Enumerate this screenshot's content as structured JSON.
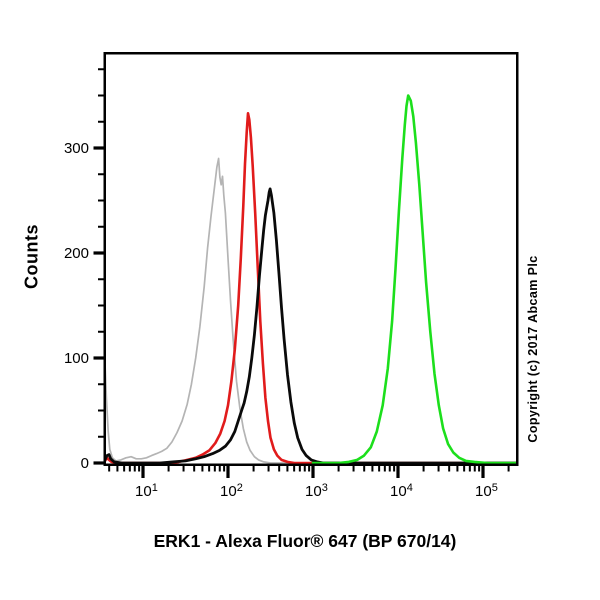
{
  "figure": {
    "copyright": "Copyright (c) 2017 Abcam Plc",
    "background": "#ffffff"
  },
  "chart_data": {
    "type": "line",
    "variant": "flow-cytometry-histogram-overlay",
    "title": "",
    "xlabel": "ERK1 - Alexa Fluor® 647 (BP 670/14)",
    "ylabel": "Counts",
    "x_scale": "log10",
    "x_unit": "log10(fluorescence intensity)",
    "xlim_log10": [
      0.553,
      5.4
    ],
    "ylim": [
      0,
      390
    ],
    "grid": false,
    "legend": false,
    "frame_color": "#000000",
    "y_major_ticks": [
      {
        "label": "0",
        "value": 0
      },
      {
        "label": "100",
        "value": 100
      },
      {
        "label": "200",
        "value": 200
      },
      {
        "label": "300",
        "value": 300
      }
    ],
    "y_minor_tick_step": 25,
    "x_major_ticks": [
      {
        "base": "10",
        "exp": "1",
        "log10": 1
      },
      {
        "base": "10",
        "exp": "2",
        "log10": 2
      },
      {
        "base": "10",
        "exp": "3",
        "log10": 3
      },
      {
        "base": "10",
        "exp": "4",
        "log10": 4
      },
      {
        "base": "10",
        "exp": "5",
        "log10": 5
      }
    ],
    "x_minor_ticks_per_decade": [
      2,
      3,
      4,
      5,
      6,
      7,
      8,
      9
    ],
    "series": [
      {
        "name": "gray-curve",
        "color": "#b4b4b4",
        "stroke_width": 1.7,
        "peak_x_approx": 78,
        "peak_count": 290,
        "points": [
          [
            0.553,
            95
          ],
          [
            0.57,
            62
          ],
          [
            0.59,
            30
          ],
          [
            0.61,
            13
          ],
          [
            0.64,
            5
          ],
          [
            0.68,
            2
          ],
          [
            0.74,
            3
          ],
          [
            0.8,
            5
          ],
          [
            0.86,
            6
          ],
          [
            0.92,
            4
          ],
          [
            0.98,
            4
          ],
          [
            1.04,
            5
          ],
          [
            1.1,
            7
          ],
          [
            1.16,
            9
          ],
          [
            1.22,
            11
          ],
          [
            1.28,
            14
          ],
          [
            1.34,
            20
          ],
          [
            1.4,
            29
          ],
          [
            1.46,
            40
          ],
          [
            1.52,
            56
          ],
          [
            1.57,
            75
          ],
          [
            1.62,
            100
          ],
          [
            1.67,
            130
          ],
          [
            1.72,
            168
          ],
          [
            1.76,
            205
          ],
          [
            1.8,
            235
          ],
          [
            1.84,
            262
          ],
          [
            1.87,
            282
          ],
          [
            1.89,
            290
          ],
          [
            1.905,
            272
          ],
          [
            1.92,
            265
          ],
          [
            1.935,
            273
          ],
          [
            1.95,
            255
          ],
          [
            1.97,
            238
          ],
          [
            2.0,
            195
          ],
          [
            2.03,
            155
          ],
          [
            2.06,
            118
          ],
          [
            2.1,
            78
          ],
          [
            2.14,
            52
          ],
          [
            2.18,
            33
          ],
          [
            2.22,
            20
          ],
          [
            2.26,
            12
          ],
          [
            2.31,
            6
          ],
          [
            2.36,
            3
          ],
          [
            2.42,
            1
          ],
          [
            2.5,
            0
          ],
          [
            5.4,
            0
          ]
        ]
      },
      {
        "name": "red-curve",
        "color": "#e11b1b",
        "stroke_width": 2.6,
        "peak_x_approx": 172,
        "peak_count": 333,
        "points": [
          [
            0.553,
            2
          ],
          [
            0.575,
            5
          ],
          [
            0.6,
            3
          ],
          [
            0.63,
            1
          ],
          [
            0.7,
            0
          ],
          [
            1.3,
            0
          ],
          [
            1.42,
            1
          ],
          [
            1.52,
            3
          ],
          [
            1.62,
            5
          ],
          [
            1.7,
            8
          ],
          [
            1.78,
            12
          ],
          [
            1.85,
            19
          ],
          [
            1.91,
            28
          ],
          [
            1.96,
            40
          ],
          [
            2.0,
            55
          ],
          [
            2.04,
            78
          ],
          [
            2.08,
            108
          ],
          [
            2.12,
            150
          ],
          [
            2.15,
            195
          ],
          [
            2.18,
            245
          ],
          [
            2.2,
            285
          ],
          [
            2.22,
            315
          ],
          [
            2.235,
            333
          ],
          [
            2.25,
            327
          ],
          [
            2.27,
            310
          ],
          [
            2.29,
            283
          ],
          [
            2.32,
            238
          ],
          [
            2.35,
            185
          ],
          [
            2.38,
            135
          ],
          [
            2.41,
            95
          ],
          [
            2.44,
            62
          ],
          [
            2.47,
            40
          ],
          [
            2.5,
            24
          ],
          [
            2.54,
            13
          ],
          [
            2.58,
            7
          ],
          [
            2.63,
            3
          ],
          [
            2.7,
            1
          ],
          [
            2.78,
            0
          ],
          [
            5.4,
            0
          ]
        ]
      },
      {
        "name": "black-curve",
        "color": "#0a0a0a",
        "stroke_width": 2.8,
        "peak_x_approx": 305,
        "peak_count": 261,
        "points": [
          [
            0.553,
            3
          ],
          [
            0.575,
            7
          ],
          [
            0.6,
            8
          ],
          [
            0.62,
            4
          ],
          [
            0.66,
            1
          ],
          [
            0.75,
            0
          ],
          [
            1.2,
            0
          ],
          [
            1.35,
            1
          ],
          [
            1.5,
            2
          ],
          [
            1.62,
            4
          ],
          [
            1.72,
            6
          ],
          [
            1.82,
            9
          ],
          [
            1.9,
            12
          ],
          [
            1.97,
            16
          ],
          [
            2.03,
            22
          ],
          [
            2.08,
            30
          ],
          [
            2.12,
            40
          ],
          [
            2.16,
            50
          ],
          [
            2.19,
            57
          ],
          [
            2.22,
            68
          ],
          [
            2.25,
            82
          ],
          [
            2.28,
            100
          ],
          [
            2.31,
            122
          ],
          [
            2.34,
            148
          ],
          [
            2.37,
            178
          ],
          [
            2.4,
            205
          ],
          [
            2.42,
            222
          ],
          [
            2.44,
            236
          ],
          [
            2.455,
            243
          ],
          [
            2.47,
            250
          ],
          [
            2.485,
            258
          ],
          [
            2.495,
            261
          ],
          [
            2.51,
            255
          ],
          [
            2.54,
            238
          ],
          [
            2.57,
            212
          ],
          [
            2.6,
            180
          ],
          [
            2.63,
            148
          ],
          [
            2.66,
            118
          ],
          [
            2.7,
            84
          ],
          [
            2.74,
            58
          ],
          [
            2.78,
            38
          ],
          [
            2.82,
            24
          ],
          [
            2.87,
            13
          ],
          [
            2.92,
            7
          ],
          [
            2.98,
            3
          ],
          [
            3.05,
            1
          ],
          [
            3.12,
            0
          ],
          [
            5.4,
            0
          ]
        ]
      },
      {
        "name": "green-curve",
        "color": "#1cdf1c",
        "stroke_width": 2.6,
        "peak_x_approx": 13200,
        "peak_count": 350,
        "points": [
          [
            3.0,
            0
          ],
          [
            3.3,
            0
          ],
          [
            3.42,
            1
          ],
          [
            3.52,
            3
          ],
          [
            3.6,
            7
          ],
          [
            3.68,
            15
          ],
          [
            3.75,
            30
          ],
          [
            3.82,
            55
          ],
          [
            3.88,
            90
          ],
          [
            3.93,
            135
          ],
          [
            3.97,
            185
          ],
          [
            4.01,
            240
          ],
          [
            4.05,
            290
          ],
          [
            4.08,
            322
          ],
          [
            4.1,
            340
          ],
          [
            4.12,
            350
          ],
          [
            4.15,
            345
          ],
          [
            4.18,
            330
          ],
          [
            4.21,
            305
          ],
          [
            4.25,
            265
          ],
          [
            4.29,
            220
          ],
          [
            4.33,
            172
          ],
          [
            4.38,
            125
          ],
          [
            4.43,
            85
          ],
          [
            4.48,
            55
          ],
          [
            4.53,
            33
          ],
          [
            4.59,
            18
          ],
          [
            4.65,
            10
          ],
          [
            4.72,
            5
          ],
          [
            4.8,
            2
          ],
          [
            4.9,
            1
          ],
          [
            5.05,
            0
          ],
          [
            5.4,
            0
          ]
        ]
      }
    ]
  }
}
